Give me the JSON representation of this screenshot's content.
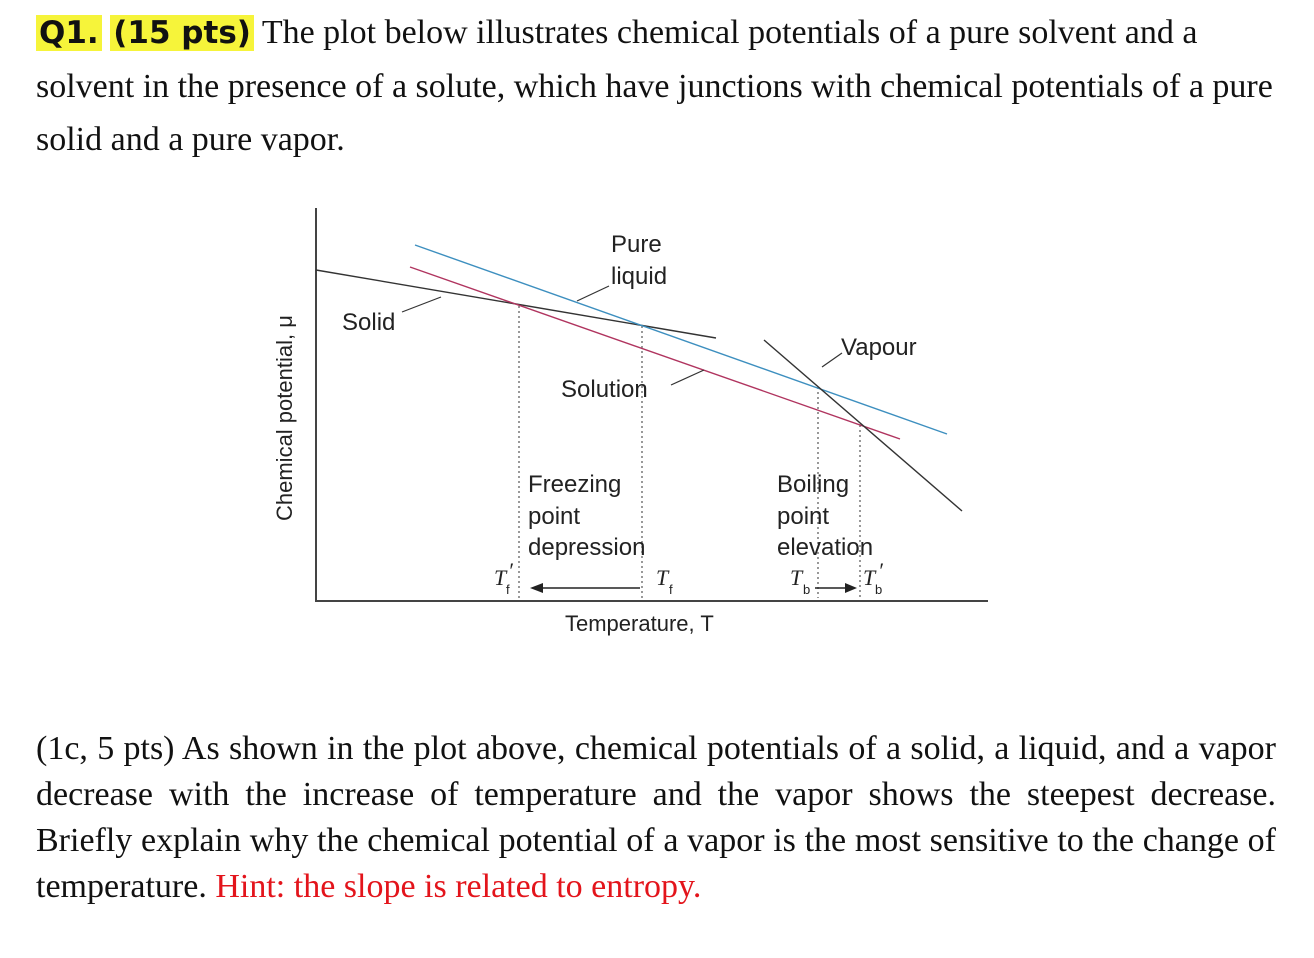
{
  "question": {
    "number": "Q1.",
    "points": "(15 pts)",
    "text": " The plot below illustrates chemical potentials of a pure solvent and a solvent in the presence of a solute, which have junctions with chemical potentials of a pure solid and a pure vapor."
  },
  "figure": {
    "ylabel": "Chemical potential, μ",
    "xlabel": "Temperature, T",
    "labels": {
      "pure": "Pure",
      "liquid": "liquid",
      "solid": "Solid",
      "vapour": "Vapour",
      "solution": "Solution",
      "freezing": "Freezing",
      "point_fp": "point",
      "depression": "depression",
      "boiling": "Boiling",
      "point_bp": "point",
      "elevation": "elevation"
    },
    "markers": {
      "tf_prime": "T",
      "tf_prime_sub": "f",
      "tf": "T",
      "tf_sub": "f",
      "tb": "T",
      "tb_sub": "b",
      "tb_prime": "T",
      "tb_prime_sub": "b",
      "prime": "′"
    },
    "colors": {
      "pure_liquid": "#3d8fbf",
      "solution": "#b0345f",
      "solid": "#333333",
      "vapour": "#333333"
    }
  },
  "subquestion": {
    "text": "(1c, 5 pts) As shown in the plot above, chemical potentials of a solid, a liquid, and a vapor decrease with the increase of temperature and the vapor shows the steepest decrease. Briefly explain why the chemical potential of a vapor is the most sensitive to the change of temperature.",
    "hint": "Hint: the slope is related to entropy."
  }
}
